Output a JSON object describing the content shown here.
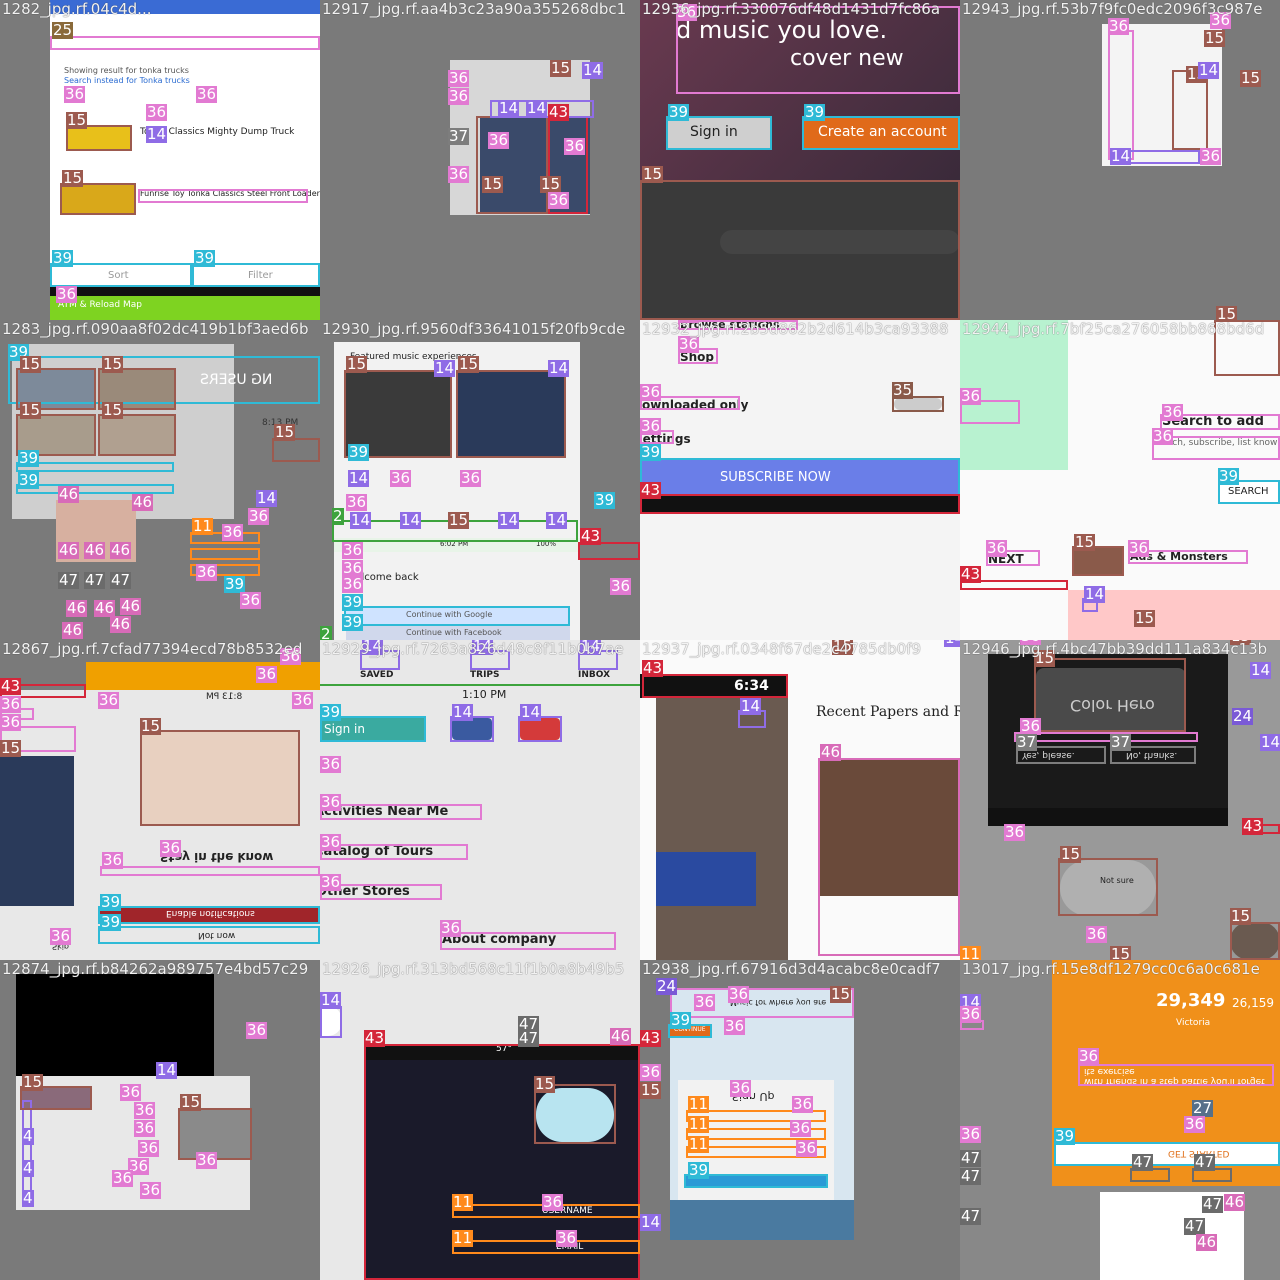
{
  "tiles": [
    {
      "file": "1282_jpg.rf.04c4d...",
      "texts": {
        "search": "Showing result for tonka trucks",
        "alt": "Search instead for Tonka trucks",
        "item1": "Tonka Classics Mighty Dump Truck",
        "item2": "Funrise Toy Tonka Classics Steel Front Loader",
        "sort": "Sort",
        "filter": "Filter",
        "atm": "ATM & Reload Map"
      }
    },
    {
      "file": "12917_jpg.rf.aa4b3c23a90a355268dbc1"
    },
    {
      "file": "12936_jpg.rf.330076df48d1431d7fc86a",
      "texts": {
        "l1": "d music you love.",
        "l2": "cover new",
        "signin": "Sign in",
        "create": "Create an account"
      }
    },
    {
      "file": "12943_jpg.rf.53b7f9fc0edc2096f3c987e"
    },
    {
      "file": "1283_jpg.rf.090aa8f02dc419b1bf3aed6b",
      "texts": {
        "users": "NG USERS",
        "time": "8:13 PM"
      }
    },
    {
      "file": "12930_jpg.rf.9560df33641015f20fb9cde",
      "texts": {
        "featured": "Featured music experiences",
        "welcome": "Welcome back",
        "google": "Continue with Google",
        "facebook": "Continue with Facebook",
        "time": "6:02 PM",
        "battery": "100%"
      }
    },
    {
      "file": "12932_jpg.rf.2b5d862b2d614b3ca93388",
      "texts": {
        "browse": "Browse stations",
        "shop": "Shop",
        "downloaded": "Downloaded only",
        "settings": "Settings",
        "subscribe": "SUBSCRIBE NOW"
      }
    },
    {
      "file": "12944_jpg.rf.7bf25ca276058bb868bd6d",
      "texts": {
        "search": "Search to add",
        "desc": "Search, subscribe, list know when new",
        "btn": "SEARCH",
        "next": "NEXT",
        "monsters": "Ads & Monsters"
      }
    },
    {
      "file": "12867_jpg.rf.7cfad77394ecd78b8532ed",
      "texts": {
        "time": "8:13 PM",
        "stay": "Stay in the know",
        "enable": "Enable notifications",
        "notnow": "Not now",
        "skip": "Skip"
      }
    },
    {
      "file": "12929_jpg.rf.7263a826d48c8f11b0b7ae",
      "texts": {
        "saved": "SAVED",
        "trips": "TRIPS",
        "inbox": "INBOX",
        "time": "1:10 PM",
        "signin": "Sign in",
        "activities": "Activities Near Me",
        "catalog": "Catalog of Tours",
        "stores": "Other Stores",
        "about": "About company"
      }
    },
    {
      "file": "12937_jpg.rf.0348f67de2c4785db0f9",
      "texts": {
        "time": "6:34",
        "recent": "Recent Papers and Reports"
      }
    },
    {
      "file": "12946_jpg.rf.4bc47bb39dd111a834c13b",
      "texts": {
        "hero": "Color Hero",
        "yes": "Yes, please.",
        "no": "No, thanks.",
        "notsure": "Not sure"
      }
    },
    {
      "file": "12874_jpg.rf.b84262a989757e4bd57c29"
    },
    {
      "file": "12926_jpg.rf.313bd568c11f1b0a8b49b5",
      "texts": {
        "username": "USERNAME",
        "email": "EMAIL",
        "temp": "57°"
      }
    },
    {
      "file": "12938_jpg.rf.67916d3d4acabc8e0cadf7",
      "texts": {
        "music": "Music for where you are",
        "signup": "Sign Up",
        "continue": "CONTINUE"
      }
    },
    {
      "file": "13017_jpg.rf.15e8df1279cc0c6a0c681e",
      "texts": {
        "score": "29,349",
        "score2": "26,159",
        "name": "Victoria",
        "friends": "with friends in a step battle you'll forget its exercise",
        "started": "GET STARTED"
      }
    }
  ],
  "colors": {
    "c11": "#ff8a1c",
    "c14": "#8f6ce6",
    "c15": "#9c5a4f",
    "c36": "#e27ad2",
    "c39": "#2fbad6",
    "c43": "#d4263a"
  }
}
